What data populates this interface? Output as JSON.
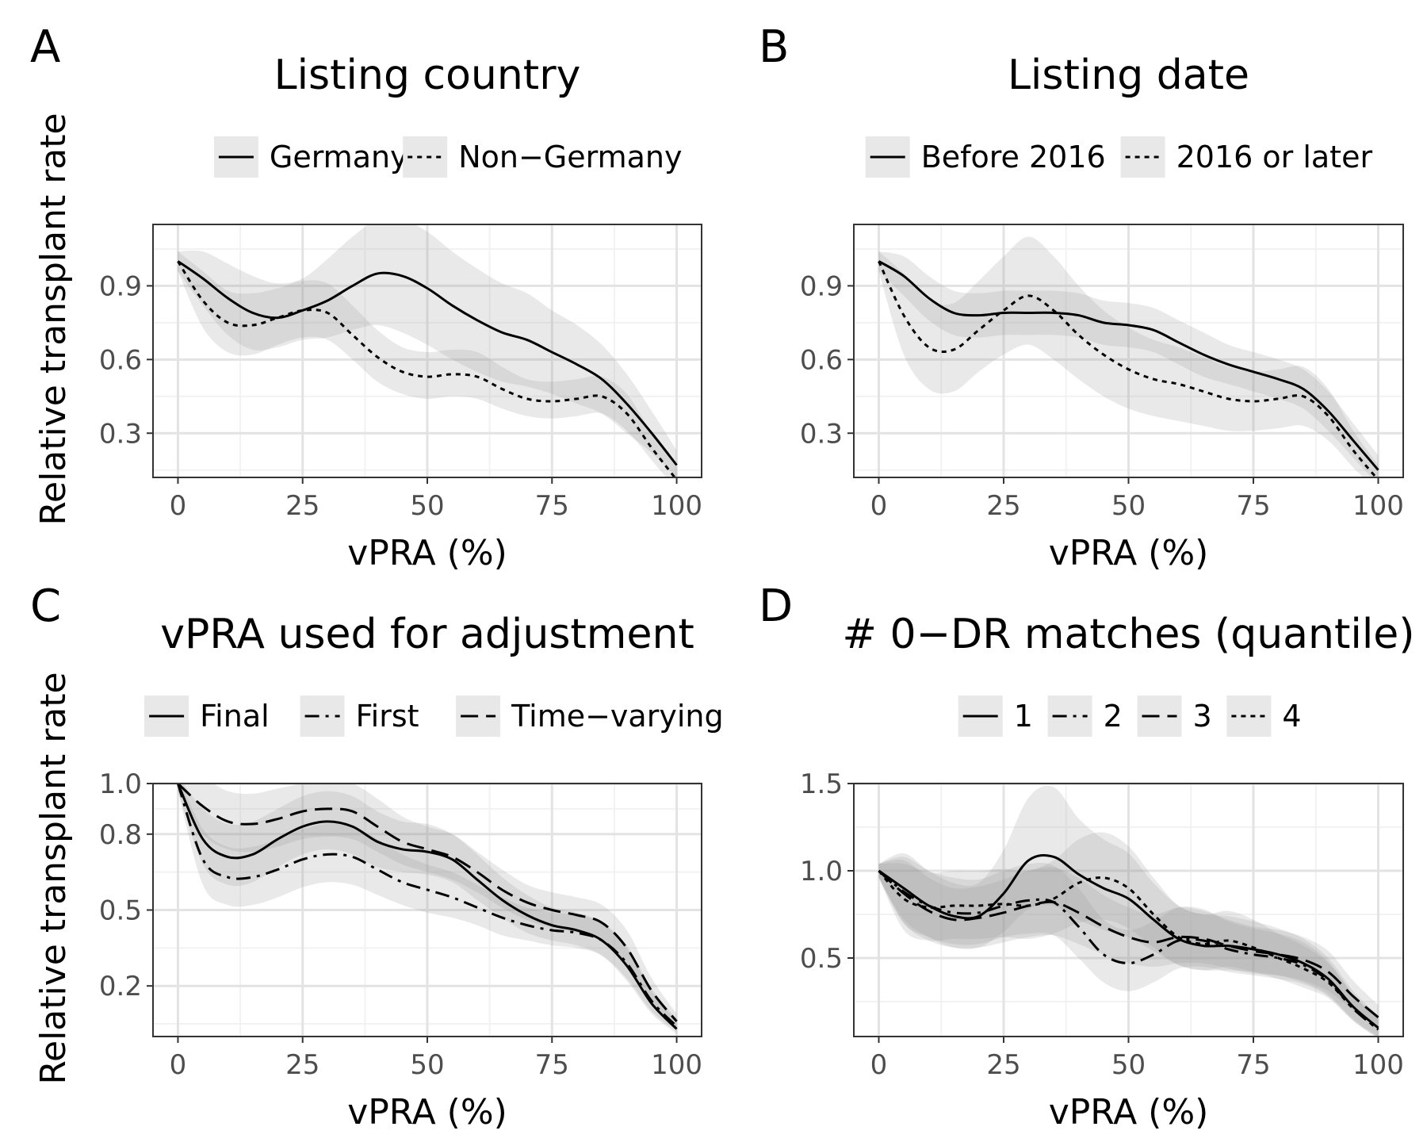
{
  "ylabel_shared": "Relative transplant rate",
  "chart_data": [
    {
      "panel": "A",
      "type": "line",
      "title": "Listing country",
      "xlabel": "vPRA (%)",
      "ylabel": "Relative transplant rate",
      "xlim": [
        -5,
        105
      ],
      "ylim": [
        0.12,
        1.15
      ],
      "xticks": [
        0,
        25,
        50,
        75,
        100
      ],
      "yticks": [
        0.3,
        0.6,
        0.9
      ],
      "grid": true,
      "legend": "top",
      "x": [
        0,
        5,
        10,
        15,
        20,
        25,
        30,
        35,
        40,
        45,
        50,
        55,
        60,
        65,
        70,
        75,
        80,
        85,
        90,
        95,
        100
      ],
      "series": [
        {
          "name": "Germany",
          "dash": "solid",
          "values": [
            1.0,
            0.93,
            0.85,
            0.79,
            0.77,
            0.8,
            0.84,
            0.9,
            0.95,
            0.94,
            0.89,
            0.82,
            0.76,
            0.71,
            0.68,
            0.63,
            0.58,
            0.52,
            0.42,
            0.3,
            0.17
          ],
          "lower": [
            0.96,
            0.82,
            0.7,
            0.64,
            0.65,
            0.68,
            0.69,
            0.72,
            0.74,
            0.71,
            0.66,
            0.6,
            0.55,
            0.51,
            0.49,
            0.46,
            0.42,
            0.38,
            0.3,
            0.22,
            0.12
          ],
          "upper": [
            1.04,
            1.04,
            0.99,
            0.94,
            0.91,
            0.93,
            1.01,
            1.1,
            1.17,
            1.17,
            1.12,
            1.04,
            0.97,
            0.91,
            0.87,
            0.8,
            0.74,
            0.66,
            0.54,
            0.39,
            0.23
          ]
        },
        {
          "name": "Non−Germany",
          "dash": "dotted",
          "values": [
            1.0,
            0.84,
            0.75,
            0.74,
            0.77,
            0.8,
            0.79,
            0.7,
            0.61,
            0.55,
            0.53,
            0.54,
            0.53,
            0.48,
            0.44,
            0.43,
            0.44,
            0.45,
            0.38,
            0.24,
            0.11
          ],
          "lower": [
            0.96,
            0.73,
            0.63,
            0.62,
            0.66,
            0.69,
            0.68,
            0.6,
            0.51,
            0.46,
            0.44,
            0.45,
            0.44,
            0.4,
            0.37,
            0.36,
            0.37,
            0.38,
            0.31,
            0.19,
            0.07
          ],
          "upper": [
            1.04,
            0.96,
            0.88,
            0.87,
            0.89,
            0.92,
            0.91,
            0.82,
            0.72,
            0.65,
            0.63,
            0.64,
            0.63,
            0.57,
            0.52,
            0.51,
            0.52,
            0.53,
            0.46,
            0.3,
            0.16
          ]
        }
      ]
    },
    {
      "panel": "B",
      "type": "line",
      "title": "Listing date",
      "xlabel": "vPRA (%)",
      "ylabel": "",
      "xlim": [
        -5,
        105
      ],
      "ylim": [
        0.12,
        1.15
      ],
      "xticks": [
        0,
        25,
        50,
        75,
        100
      ],
      "yticks": [
        0.3,
        0.6,
        0.9
      ],
      "grid": true,
      "legend": "top",
      "x": [
        0,
        5,
        10,
        15,
        20,
        25,
        30,
        35,
        40,
        45,
        50,
        55,
        60,
        65,
        70,
        75,
        80,
        85,
        90,
        95,
        100
      ],
      "series": [
        {
          "name": "Before 2016",
          "dash": "solid",
          "values": [
            1.0,
            0.94,
            0.85,
            0.79,
            0.78,
            0.79,
            0.79,
            0.79,
            0.78,
            0.75,
            0.74,
            0.72,
            0.67,
            0.62,
            0.58,
            0.55,
            0.52,
            0.48,
            0.39,
            0.27,
            0.15
          ],
          "lower": [
            0.96,
            0.86,
            0.76,
            0.7,
            0.69,
            0.7,
            0.7,
            0.7,
            0.69,
            0.66,
            0.65,
            0.63,
            0.58,
            0.53,
            0.5,
            0.47,
            0.44,
            0.4,
            0.31,
            0.2,
            0.09
          ],
          "upper": [
            1.04,
            1.02,
            0.94,
            0.88,
            0.87,
            0.88,
            0.88,
            0.88,
            0.87,
            0.84,
            0.83,
            0.81,
            0.76,
            0.71,
            0.66,
            0.63,
            0.6,
            0.56,
            0.47,
            0.34,
            0.21
          ]
        },
        {
          "name": "2016 or later",
          "dash": "dotted",
          "values": [
            1.0,
            0.78,
            0.65,
            0.64,
            0.72,
            0.8,
            0.86,
            0.8,
            0.7,
            0.62,
            0.56,
            0.52,
            0.5,
            0.47,
            0.44,
            0.43,
            0.44,
            0.45,
            0.37,
            0.23,
            0.11
          ],
          "lower": [
            0.96,
            0.62,
            0.48,
            0.47,
            0.55,
            0.62,
            0.66,
            0.6,
            0.52,
            0.45,
            0.4,
            0.37,
            0.35,
            0.33,
            0.31,
            0.31,
            0.32,
            0.33,
            0.27,
            0.16,
            0.06
          ],
          "upper": [
            1.04,
            0.95,
            0.84,
            0.83,
            0.92,
            1.02,
            1.1,
            1.02,
            0.9,
            0.8,
            0.73,
            0.68,
            0.65,
            0.61,
            0.57,
            0.55,
            0.56,
            0.57,
            0.48,
            0.31,
            0.17
          ]
        }
      ]
    },
    {
      "panel": "C",
      "type": "line",
      "title": "vPRA used for adjustment",
      "xlabel": "vPRA (%)",
      "ylabel": "Relative transplant rate",
      "xlim": [
        -5,
        105
      ],
      "ylim": [
        0.0,
        1.0
      ],
      "xticks": [
        0,
        25,
        50,
        75,
        100
      ],
      "yticks": [
        0.2,
        0.5,
        0.8,
        1.0
      ],
      "ytick_labels": [
        "0.2",
        "0.5",
        "0.8",
        "1.0"
      ],
      "grid": true,
      "legend": "top",
      "x": [
        0,
        5,
        10,
        15,
        20,
        25,
        30,
        35,
        40,
        45,
        50,
        55,
        60,
        65,
        70,
        75,
        80,
        85,
        90,
        95,
        100
      ],
      "series": [
        {
          "name": "Final",
          "dash": "solid",
          "values": [
            1.0,
            0.78,
            0.71,
            0.72,
            0.78,
            0.83,
            0.85,
            0.83,
            0.77,
            0.74,
            0.73,
            0.7,
            0.62,
            0.54,
            0.48,
            0.44,
            0.42,
            0.38,
            0.28,
            0.13,
            0.03
          ],
          "lower": [
            0.97,
            0.68,
            0.6,
            0.61,
            0.67,
            0.72,
            0.74,
            0.72,
            0.67,
            0.65,
            0.64,
            0.61,
            0.54,
            0.47,
            0.41,
            0.38,
            0.36,
            0.32,
            0.22,
            0.09,
            0.01
          ],
          "upper": [
            1.03,
            0.9,
            0.84,
            0.85,
            0.9,
            0.95,
            0.97,
            0.95,
            0.89,
            0.85,
            0.84,
            0.8,
            0.72,
            0.63,
            0.56,
            0.51,
            0.49,
            0.45,
            0.35,
            0.18,
            0.06
          ]
        },
        {
          "name": "First",
          "dash": "dashdot",
          "values": [
            1.0,
            0.7,
            0.63,
            0.63,
            0.66,
            0.7,
            0.72,
            0.71,
            0.66,
            0.61,
            0.58,
            0.55,
            0.51,
            0.47,
            0.44,
            0.42,
            0.41,
            0.38,
            0.29,
            0.14,
            0.04
          ],
          "lower": [
            0.97,
            0.6,
            0.52,
            0.52,
            0.55,
            0.59,
            0.61,
            0.6,
            0.56,
            0.52,
            0.49,
            0.47,
            0.44,
            0.4,
            0.38,
            0.36,
            0.35,
            0.32,
            0.23,
            0.1,
            0.02
          ],
          "upper": [
            1.03,
            0.82,
            0.75,
            0.75,
            0.78,
            0.82,
            0.84,
            0.83,
            0.78,
            0.72,
            0.68,
            0.65,
            0.6,
            0.55,
            0.51,
            0.49,
            0.48,
            0.45,
            0.36,
            0.19,
            0.07
          ]
        },
        {
          "name": "Time−varying",
          "dash": "dashed",
          "values": [
            1.0,
            0.91,
            0.85,
            0.84,
            0.86,
            0.89,
            0.9,
            0.89,
            0.83,
            0.77,
            0.74,
            0.71,
            0.65,
            0.58,
            0.53,
            0.5,
            0.48,
            0.45,
            0.35,
            0.18,
            0.06
          ],
          "lower": [
            0.97,
            0.8,
            0.74,
            0.73,
            0.75,
            0.78,
            0.79,
            0.78,
            0.73,
            0.68,
            0.65,
            0.62,
            0.57,
            0.51,
            0.46,
            0.43,
            0.41,
            0.38,
            0.28,
            0.13,
            0.03
          ],
          "upper": [
            1.03,
            1.02,
            0.97,
            0.96,
            0.98,
            1.0,
            1.01,
            1.0,
            0.94,
            0.87,
            0.83,
            0.8,
            0.73,
            0.66,
            0.6,
            0.57,
            0.55,
            0.52,
            0.42,
            0.23,
            0.09
          ]
        }
      ]
    },
    {
      "panel": "D",
      "type": "line",
      "title": "# 0−DR matches (quantile)",
      "xlabel": "vPRA (%)",
      "ylabel": "",
      "xlim": [
        -5,
        105
      ],
      "ylim": [
        0.05,
        1.5
      ],
      "xticks": [
        0,
        25,
        50,
        75,
        100
      ],
      "yticks": [
        0.5,
        1.0,
        1.5
      ],
      "ytick_labels": [
        "0.5",
        "1.0",
        "1.5"
      ],
      "grid": true,
      "legend": "top",
      "x": [
        0,
        5,
        10,
        15,
        20,
        25,
        30,
        35,
        40,
        45,
        50,
        55,
        60,
        65,
        70,
        75,
        80,
        85,
        90,
        95,
        100
      ],
      "series": [
        {
          "name": "1",
          "dash": "solid",
          "values": [
            1.0,
            0.9,
            0.8,
            0.74,
            0.74,
            0.87,
            1.06,
            1.08,
            0.98,
            0.9,
            0.84,
            0.72,
            0.61,
            0.57,
            0.57,
            0.55,
            0.52,
            0.47,
            0.38,
            0.22,
            0.1
          ],
          "lower": [
            0.96,
            0.72,
            0.62,
            0.56,
            0.56,
            0.65,
            0.78,
            0.8,
            0.72,
            0.66,
            0.62,
            0.54,
            0.46,
            0.43,
            0.43,
            0.42,
            0.4,
            0.36,
            0.29,
            0.15,
            0.05
          ],
          "upper": [
            1.04,
            1.1,
            1.0,
            0.93,
            0.93,
            1.12,
            1.42,
            1.48,
            1.3,
            1.18,
            1.1,
            0.93,
            0.8,
            0.75,
            0.74,
            0.71,
            0.67,
            0.61,
            0.5,
            0.31,
            0.17
          ]
        },
        {
          "name": "2",
          "dash": "dashdot",
          "values": [
            1.0,
            0.88,
            0.8,
            0.76,
            0.76,
            0.8,
            0.83,
            0.82,
            0.68,
            0.52,
            0.47,
            0.52,
            0.6,
            0.6,
            0.55,
            0.52,
            0.5,
            0.46,
            0.37,
            0.21,
            0.09
          ],
          "lower": [
            0.96,
            0.7,
            0.62,
            0.58,
            0.58,
            0.62,
            0.64,
            0.63,
            0.5,
            0.36,
            0.31,
            0.36,
            0.44,
            0.45,
            0.42,
            0.4,
            0.38,
            0.35,
            0.28,
            0.14,
            0.04
          ],
          "upper": [
            1.04,
            1.08,
            1.0,
            0.96,
            0.95,
            1.0,
            1.04,
            1.03,
            0.9,
            0.72,
            0.66,
            0.71,
            0.79,
            0.78,
            0.71,
            0.67,
            0.64,
            0.59,
            0.48,
            0.29,
            0.15
          ]
        },
        {
          "name": "3",
          "dash": "dashed",
          "values": [
            1.0,
            0.87,
            0.77,
            0.72,
            0.73,
            0.76,
            0.8,
            0.82,
            0.76,
            0.68,
            0.62,
            0.59,
            0.62,
            0.61,
            0.57,
            0.54,
            0.52,
            0.49,
            0.42,
            0.28,
            0.16
          ],
          "lower": [
            0.96,
            0.7,
            0.6,
            0.56,
            0.56,
            0.59,
            0.62,
            0.63,
            0.58,
            0.52,
            0.47,
            0.45,
            0.47,
            0.47,
            0.44,
            0.41,
            0.4,
            0.37,
            0.31,
            0.2,
            0.1
          ],
          "upper": [
            1.04,
            1.06,
            0.96,
            0.9,
            0.91,
            0.95,
            1.0,
            1.02,
            0.96,
            0.86,
            0.79,
            0.75,
            0.79,
            0.77,
            0.72,
            0.68,
            0.66,
            0.62,
            0.54,
            0.37,
            0.23
          ]
        },
        {
          "name": "4",
          "dash": "dotted",
          "values": [
            1.0,
            0.84,
            0.79,
            0.8,
            0.8,
            0.81,
            0.8,
            0.84,
            0.93,
            0.96,
            0.9,
            0.75,
            0.62,
            0.58,
            0.6,
            0.56,
            0.5,
            0.44,
            0.36,
            0.21,
            0.09
          ],
          "lower": [
            0.96,
            0.66,
            0.6,
            0.61,
            0.61,
            0.62,
            0.61,
            0.64,
            0.7,
            0.72,
            0.67,
            0.56,
            0.46,
            0.43,
            0.45,
            0.42,
            0.38,
            0.33,
            0.27,
            0.14,
            0.04
          ],
          "upper": [
            1.04,
            1.04,
            0.99,
            1.0,
            1.0,
            1.01,
            1.0,
            1.06,
            1.18,
            1.22,
            1.14,
            0.96,
            0.8,
            0.75,
            0.77,
            0.72,
            0.64,
            0.57,
            0.47,
            0.29,
            0.15
          ]
        }
      ]
    }
  ]
}
